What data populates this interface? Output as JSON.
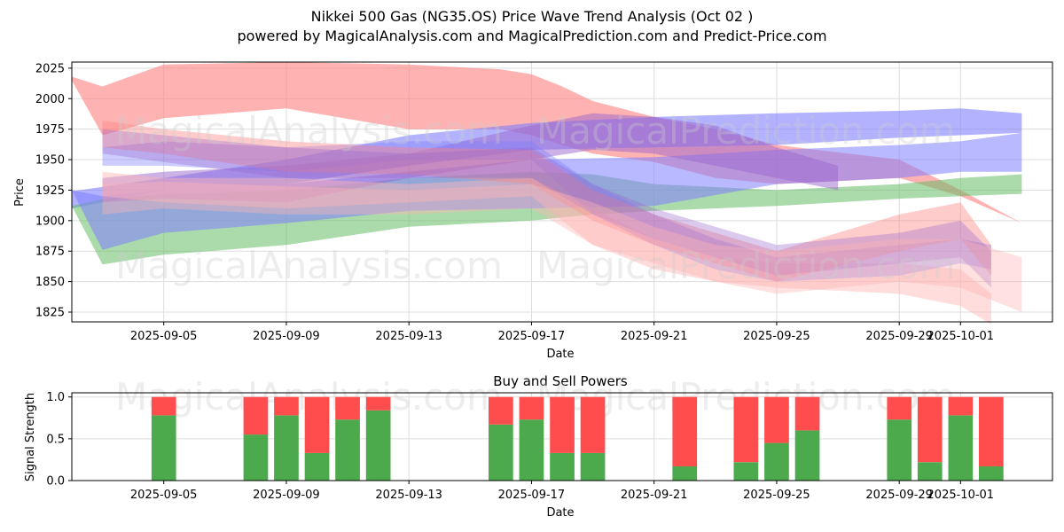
{
  "title": "Nikkei 500 Gas (NG35.OS) Price Wave Trend Analysis (Oct 02 )",
  "subtitle": "powered by MagicalAnalysis.com and MagicalPrediction.com and Predict-Price.com",
  "watermarks": [
    "MagicalAnalysis.com",
    "MagicalPrediction.com"
  ],
  "chart_data": [
    {
      "type": "area",
      "xlabel": "Date",
      "ylabel": "Price",
      "x_range": [
        "2025-09-02",
        "2025-10-04"
      ],
      "ylim": [
        1817,
        2030
      ],
      "y_ticks": [
        1825,
        1850,
        1875,
        1900,
        1925,
        1950,
        1975,
        2000,
        2025
      ],
      "x_ticks": [
        "2025-09-05",
        "2025-09-09",
        "2025-09-13",
        "2025-09-17",
        "2025-09-21",
        "2025-09-25",
        "2025-09-29",
        "2025-10-01"
      ],
      "grid": true,
      "colors": {
        "red": "#ff7f7f",
        "blue": "#7f7fff",
        "green": "#66bb66",
        "pink": "#ffb3b3",
        "purple": "#9966cc"
      },
      "bands": [
        {
          "color": "red",
          "opacity": 0.6,
          "x": [
            "2025-09-02",
            "2025-09-03",
            "2025-09-05",
            "2025-09-09",
            "2025-09-13",
            "2025-09-16",
            "2025-09-17",
            "2025-09-18",
            "2025-09-19",
            "2025-09-21",
            "2025-09-23",
            "2025-09-25",
            "2025-09-29",
            "2025-10-01",
            "2025-10-03"
          ],
          "upper": [
            2018,
            2010,
            2028,
            2030,
            2028,
            2024,
            2020,
            2010,
            1998,
            1985,
            1975,
            1962,
            1950,
            1925,
            1898
          ],
          "lower": [
            2015,
            1970,
            1984,
            1992,
            1975,
            1975,
            1970,
            1962,
            1955,
            1948,
            1935,
            1930,
            1935,
            1920,
            1898
          ]
        },
        {
          "color": "blue",
          "opacity": 0.6,
          "x": [
            "2025-09-02",
            "2025-09-05",
            "2025-09-09",
            "2025-09-13",
            "2025-09-17",
            "2025-09-21",
            "2025-09-25",
            "2025-09-29",
            "2025-10-01",
            "2025-10-03"
          ],
          "upper": [
            1924,
            1935,
            1950,
            1970,
            1980,
            1985,
            1988,
            1990,
            1992,
            1988
          ],
          "lower": [
            1910,
            1925,
            1930,
            1945,
            1958,
            1960,
            1962,
            1968,
            1970,
            1972
          ]
        },
        {
          "color": "green",
          "opacity": 0.55,
          "x": [
            "2025-09-02",
            "2025-09-03",
            "2025-09-05",
            "2025-09-09",
            "2025-09-13",
            "2025-09-17",
            "2025-09-19",
            "2025-09-21",
            "2025-09-25",
            "2025-09-29",
            "2025-10-01",
            "2025-10-03"
          ],
          "upper": [
            1912,
            1918,
            1922,
            1925,
            1935,
            1940,
            1938,
            1930,
            1925,
            1930,
            1935,
            1938
          ],
          "lower": [
            1912,
            1864,
            1872,
            1880,
            1895,
            1900,
            1905,
            1908,
            1912,
            1918,
            1920,
            1922
          ]
        },
        {
          "color": "blue",
          "opacity": 0.55,
          "x": [
            "2025-09-02",
            "2025-09-03",
            "2025-09-05",
            "2025-09-09",
            "2025-09-13",
            "2025-09-17",
            "2025-09-21",
            "2025-09-25",
            "2025-09-29",
            "2025-10-01",
            "2025-10-03"
          ],
          "upper": [
            1925,
            1920,
            1925,
            1930,
            1940,
            1950,
            1952,
            1958,
            1962,
            1965,
            1972
          ],
          "lower": [
            1925,
            1876,
            1890,
            1898,
            1908,
            1910,
            1912,
            1930,
            1935,
            1940,
            1940
          ]
        },
        {
          "color": "purple",
          "opacity": 0.5,
          "x": [
            "2025-09-03",
            "2025-09-05",
            "2025-09-09",
            "2025-09-13",
            "2025-09-17",
            "2025-09-19",
            "2025-09-21",
            "2025-09-23",
            "2025-09-25",
            "2025-09-27"
          ],
          "upper": [
            1935,
            1940,
            1945,
            1955,
            1978,
            1988,
            1985,
            1978,
            1960,
            1945
          ],
          "lower": [
            1915,
            1918,
            1915,
            1935,
            1950,
            1958,
            1955,
            1945,
            1935,
            1925
          ]
        },
        {
          "color": "pink",
          "opacity": 0.45,
          "x": [
            "2025-09-03",
            "2025-09-05",
            "2025-09-09",
            "2025-09-13",
            "2025-09-17",
            "2025-09-19",
            "2025-09-21",
            "2025-09-23",
            "2025-09-25",
            "2025-09-29",
            "2025-10-01",
            "2025-10-02"
          ],
          "upper": [
            1940,
            1935,
            1935,
            1930,
            1935,
            1910,
            1885,
            1870,
            1865,
            1865,
            1860,
            1840
          ],
          "lower": [
            1920,
            1915,
            1910,
            1915,
            1920,
            1880,
            1860,
            1850,
            1845,
            1840,
            1830,
            1815
          ]
        },
        {
          "color": "blue",
          "opacity": 0.4,
          "x": [
            "2025-09-03",
            "2025-09-05",
            "2025-09-09",
            "2025-09-13",
            "2025-09-17",
            "2025-09-19",
            "2025-09-21",
            "2025-09-23",
            "2025-09-25",
            "2025-09-29",
            "2025-10-01",
            "2025-10-02"
          ],
          "upper": [
            1960,
            1965,
            1960,
            1965,
            1965,
            1930,
            1905,
            1885,
            1870,
            1880,
            1885,
            1880
          ],
          "lower": [
            1945,
            1945,
            1940,
            1950,
            1950,
            1905,
            1880,
            1860,
            1850,
            1855,
            1865,
            1860
          ]
        },
        {
          "color": "red",
          "opacity": 0.4,
          "x": [
            "2025-09-03",
            "2025-09-05",
            "2025-09-09",
            "2025-09-13",
            "2025-09-17",
            "2025-09-19",
            "2025-09-21",
            "2025-09-23",
            "2025-09-25",
            "2025-09-29",
            "2025-10-01",
            "2025-10-02"
          ],
          "upper": [
            1982,
            1975,
            1965,
            1960,
            1958,
            1925,
            1905,
            1890,
            1875,
            1905,
            1915,
            1880
          ],
          "lower": [
            1960,
            1955,
            1940,
            1938,
            1930,
            1900,
            1880,
            1865,
            1850,
            1875,
            1885,
            1855
          ]
        },
        {
          "color": "purple",
          "opacity": 0.35,
          "x": [
            "2025-09-03",
            "2025-09-05",
            "2025-09-09",
            "2025-09-13",
            "2025-09-17",
            "2025-09-19",
            "2025-09-21",
            "2025-09-23",
            "2025-09-25",
            "2025-09-29",
            "2025-10-01",
            "2025-10-02"
          ],
          "upper": [
            1975,
            1970,
            1960,
            1955,
            1960,
            1930,
            1910,
            1895,
            1880,
            1890,
            1900,
            1875
          ],
          "lower": [
            1955,
            1948,
            1935,
            1935,
            1935,
            1905,
            1885,
            1870,
            1855,
            1865,
            1870,
            1845
          ]
        },
        {
          "color": "pink",
          "opacity": 0.4,
          "x": [
            "2025-09-03",
            "2025-09-05",
            "2025-09-09",
            "2025-09-13",
            "2025-09-17",
            "2025-09-19",
            "2025-09-21",
            "2025-09-23",
            "2025-09-25",
            "2025-09-27",
            "2025-09-29",
            "2025-10-01",
            "2025-10-03"
          ],
          "upper": [
            1930,
            1932,
            1928,
            1925,
            1930,
            1915,
            1895,
            1880,
            1875,
            1880,
            1885,
            1885,
            1870
          ],
          "lower": [
            1905,
            1910,
            1905,
            1905,
            1910,
            1880,
            1865,
            1850,
            1840,
            1845,
            1850,
            1845,
            1825
          ]
        }
      ]
    },
    {
      "type": "bar",
      "title": "Buy and Sell Powers",
      "xlabel": "Date",
      "ylabel": "Signal Strength",
      "ylim": [
        0,
        1.05
      ],
      "y_ticks": [
        0.0,
        0.5,
        1.0
      ],
      "x_ticks": [
        "2025-09-05",
        "2025-09-09",
        "2025-09-13",
        "2025-09-17",
        "2025-09-21",
        "2025-09-25",
        "2025-09-29",
        "2025-10-01"
      ],
      "colors": {
        "buy": "#4caa4c",
        "sell": "#ff4c4c"
      },
      "categories": [
        "2025-09-05",
        "2025-09-08",
        "2025-09-09",
        "2025-09-10",
        "2025-09-11",
        "2025-09-12",
        "2025-09-16",
        "2025-09-17",
        "2025-09-18",
        "2025-09-19",
        "2025-09-22",
        "2025-09-24",
        "2025-09-25",
        "2025-09-26",
        "2025-09-29",
        "2025-09-30",
        "2025-10-01",
        "2025-10-02"
      ],
      "series": [
        {
          "values": [
            0.78,
            0.55,
            0.78,
            0.33,
            0.73,
            0.84,
            0.67,
            0.73,
            0.33,
            0.33,
            0.17,
            0.22,
            0.45,
            0.6,
            0.73,
            0.22,
            0.78,
            0.17
          ]
        },
        {
          "values": [
            0.22,
            0.45,
            0.22,
            0.67,
            0.27,
            0.16,
            0.33,
            0.27,
            0.67,
            0.67,
            0.83,
            0.78,
            0.55,
            0.4,
            0.27,
            0.78,
            0.22,
            0.83
          ]
        }
      ]
    }
  ]
}
